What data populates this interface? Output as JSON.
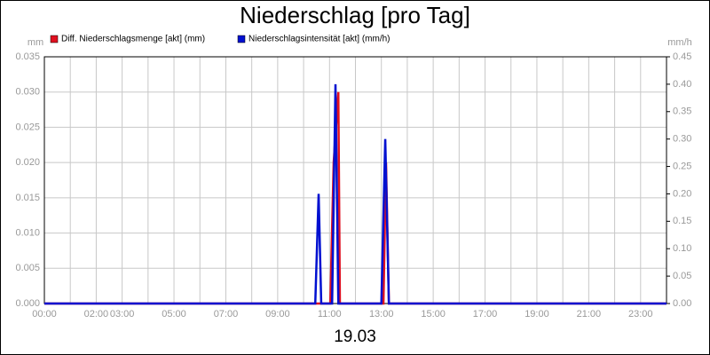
{
  "chart_data": {
    "type": "line",
    "title": "Niederschlag [pro Tag]",
    "x_label": "19.03",
    "y_label": "mm",
    "y2_label": "mm/h",
    "xlim": [
      0,
      24
    ],
    "xticks": [
      {
        "value": 0,
        "label": "00:00"
      },
      {
        "value": 1,
        "label": null
      },
      {
        "value": 2,
        "label": "02:00"
      },
      {
        "value": 3,
        "label": "03:00"
      },
      {
        "value": 4,
        "label": null
      },
      {
        "value": 5,
        "label": "05:00"
      },
      {
        "value": 6,
        "label": null
      },
      {
        "value": 7,
        "label": "07:00"
      },
      {
        "value": 8,
        "label": null
      },
      {
        "value": 9,
        "label": "09:00"
      },
      {
        "value": 10,
        "label": null
      },
      {
        "value": 11,
        "label": "11:00"
      },
      {
        "value": 12,
        "label": null
      },
      {
        "value": 13,
        "label": "13:00"
      },
      {
        "value": 14,
        "label": null
      },
      {
        "value": 15,
        "label": "15:00"
      },
      {
        "value": 16,
        "label": null
      },
      {
        "value": 17,
        "label": "17:00"
      },
      {
        "value": 18,
        "label": null
      },
      {
        "value": 19,
        "label": "19:00"
      },
      {
        "value": 20,
        "label": null
      },
      {
        "value": 21,
        "label": "21:00"
      },
      {
        "value": 22,
        "label": null
      },
      {
        "value": 23,
        "label": "23:00"
      },
      {
        "value": 24,
        "label": null
      }
    ],
    "ylim": [
      0,
      0.035
    ],
    "yticks": [
      {
        "value": 0,
        "label": "0.000"
      },
      {
        "value": 0.005,
        "label": "0.005"
      },
      {
        "value": 0.01,
        "label": "0.010"
      },
      {
        "value": 0.015,
        "label": "0.015"
      },
      {
        "value": 0.02,
        "label": "0.020"
      },
      {
        "value": 0.025,
        "label": "0.025"
      },
      {
        "value": 0.03,
        "label": "0.030"
      },
      {
        "value": 0.035,
        "label": "0.035"
      }
    ],
    "y2lim": [
      0,
      0.45
    ],
    "y2ticks": [
      {
        "value": 0,
        "label": "0.00"
      },
      {
        "value": 0.05,
        "label": "0.05"
      },
      {
        "value": 0.1,
        "label": "0.10"
      },
      {
        "value": 0.15,
        "label": "0.15"
      },
      {
        "value": 0.2,
        "label": "0.20"
      },
      {
        "value": 0.25,
        "label": "0.25"
      },
      {
        "value": 0.3,
        "label": "0.30"
      },
      {
        "value": 0.35,
        "label": "0.35"
      },
      {
        "value": 0.4,
        "label": "0.40"
      },
      {
        "value": 0.45,
        "label": "0.45"
      }
    ],
    "grid": true,
    "series": [
      {
        "name": "Diff. Niederschlagsmenge [akt] (mm)",
        "color": "#e01020",
        "x": [
          0,
          11.03,
          11.16,
          11.34,
          11.4,
          13.08,
          13.18,
          13.29,
          24
        ],
        "values": [
          0,
          0,
          0.02,
          0.03,
          0,
          0,
          0.02,
          0,
          0
        ]
      },
      {
        "name": "Niederschlagsintensität [akt] (mm/h)",
        "color": "#0010d0",
        "axis": "y2",
        "x": [
          0,
          10.45,
          10.58,
          10.68,
          11.1,
          11.23,
          11.34,
          13.0,
          13.15,
          13.29,
          24
        ],
        "values": [
          0,
          0,
          0.2,
          0,
          0,
          0.4,
          0,
          0,
          0.3,
          0,
          0
        ]
      }
    ]
  }
}
